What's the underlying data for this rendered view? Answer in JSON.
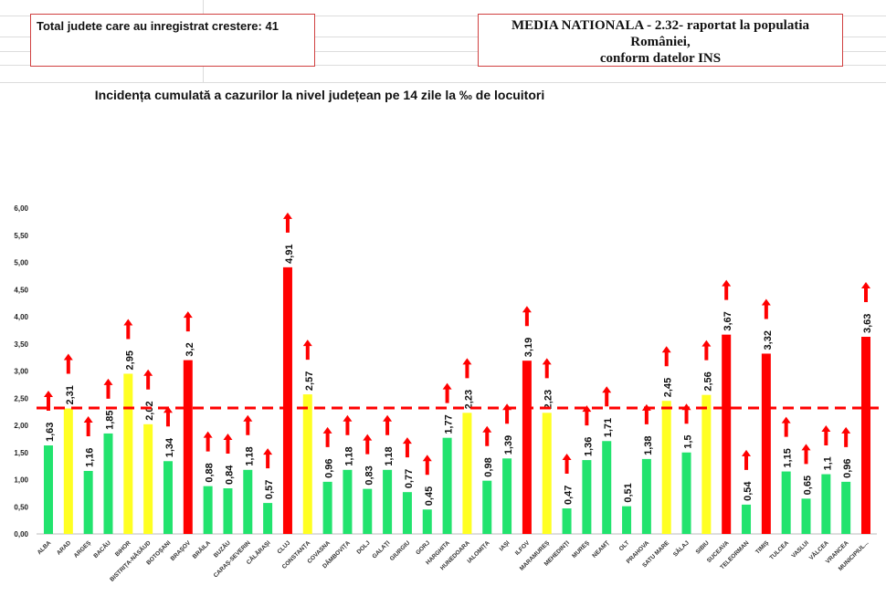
{
  "header": {
    "left_box": "Total judete care au inregistrat crestere: 41",
    "right_box_line1": "MEDIA NATIONALA - 2.32-  raportat la populatia României,",
    "right_box_line2": "conform datelor INS"
  },
  "chart_data": {
    "type": "bar",
    "title": "Incidența cumulată a cazurilor la nivel județean pe 14 zile la ‰ de locuitori",
    "xlabel": "",
    "ylabel": "",
    "ylim": [
      0,
      6
    ],
    "yticks": [
      "0,00",
      "0,50",
      "1,00",
      "1,50",
      "2,00",
      "2,50",
      "3,00",
      "3,50",
      "4,00",
      "4,50",
      "5,00",
      "5,50",
      "6,00"
    ],
    "grid": false,
    "reference_line": {
      "value": 2.32,
      "style": "dashed",
      "color": "#ff0000"
    },
    "colors": {
      "green": "#22e36e",
      "yellow": "#ffff22",
      "red": "#ff0000",
      "arrow": "#ff0000"
    },
    "categories": [
      "ALBA",
      "ARAD",
      "ARGEȘ",
      "BACĂU",
      "BIHOR",
      "BISTRIȚA-NĂSĂUD",
      "BOTOȘANI",
      "BRAȘOV",
      "BRĂILA",
      "BUZĂU",
      "CARAȘ-SEVERIN",
      "CĂLĂRAȘI",
      "CLUJ",
      "CONSTANȚA",
      "COVASNA",
      "DÂMBOVIȚA",
      "DOLJ",
      "GALAȚI",
      "GIURGIU",
      "GORJ",
      "HARGHITA",
      "HUNEDOARA",
      "IALOMIȚA",
      "IAȘI",
      "ILFOV",
      "MARAMUREȘ",
      "MEHEDINȚI",
      "MUREȘ",
      "NEAMȚ",
      "OLT",
      "PRAHOVA",
      "SATU MARE",
      "SĂLAJ",
      "SIBIU",
      "SUCEAVA",
      "TELEORMAN",
      "TIMIȘ",
      "TULCEA",
      "VASLUI",
      "VÂLCEA",
      "VRANCEA",
      "MUNICIPIUL..."
    ],
    "values": [
      1.63,
      2.31,
      1.16,
      1.85,
      2.95,
      2.02,
      1.34,
      3.2,
      0.88,
      0.84,
      1.18,
      0.57,
      4.91,
      2.57,
      0.96,
      1.18,
      0.83,
      1.18,
      0.77,
      0.45,
      1.77,
      2.23,
      0.98,
      1.39,
      3.19,
      2.23,
      0.47,
      1.36,
      1.71,
      0.51,
      1.38,
      2.45,
      1.5,
      2.56,
      3.67,
      0.54,
      3.32,
      1.15,
      0.65,
      1.1,
      0.96,
      3.63
    ],
    "data_labels": [
      "1,63",
      "2,31",
      "1,16",
      "1,85",
      "2,95",
      "2,02",
      "1,34",
      "3,2",
      "0,88",
      "0,84",
      "1,18",
      "0,57",
      "4,91",
      "2,57",
      "0,96",
      "1,18",
      "0,83",
      "1,18",
      "0,77",
      "0,45",
      "1,77",
      "2,23",
      "0,98",
      "1,39",
      "3,19",
      "2,23",
      "0,47",
      "1,36",
      "1,71",
      "0,51",
      "1,38",
      "2,45",
      "1,5",
      "2,56",
      "3,67",
      "0,54",
      "3,32",
      "1,15",
      "0,65",
      "1,1",
      "0,96",
      "3,63"
    ],
    "bar_colors": [
      "green",
      "yellow",
      "green",
      "green",
      "yellow",
      "yellow",
      "green",
      "red",
      "green",
      "green",
      "green",
      "green",
      "red",
      "yellow",
      "green",
      "green",
      "green",
      "green",
      "green",
      "green",
      "green",
      "yellow",
      "green",
      "green",
      "red",
      "yellow",
      "green",
      "green",
      "green",
      "green",
      "green",
      "yellow",
      "green",
      "yellow",
      "red",
      "green",
      "red",
      "green",
      "green",
      "green",
      "green",
      "red"
    ],
    "increase_arrow": [
      true,
      true,
      true,
      true,
      true,
      true,
      true,
      true,
      true,
      true,
      true,
      true,
      true,
      true,
      true,
      true,
      true,
      true,
      true,
      true,
      true,
      true,
      true,
      true,
      true,
      true,
      true,
      true,
      true,
      false,
      true,
      true,
      true,
      true,
      true,
      true,
      true,
      true,
      true,
      true,
      true,
      true
    ]
  }
}
